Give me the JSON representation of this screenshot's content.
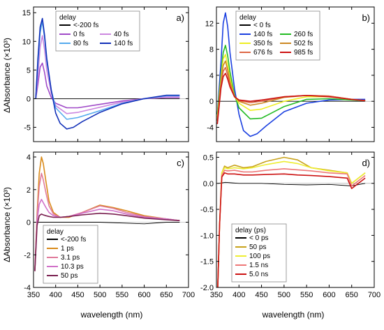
{
  "figure": {
    "shared_ylabel": "ΔAbsorbance (×10³)",
    "shared_xlabel": "wavelength (nm)"
  },
  "chart_data": [
    {
      "panel": "a)",
      "type": "line",
      "xlim": [
        350,
        700
      ],
      "ylim": [
        -7.5,
        16
      ],
      "xticks": [
        350,
        400,
        450,
        500,
        550,
        600,
        650,
        700
      ],
      "yticks": [
        -5,
        0,
        5,
        10,
        15
      ],
      "legend": {
        "title": "delay",
        "placement": "top-left",
        "columns": 2
      },
      "series": [
        {
          "name": "<-200 fs",
          "color": "#000000",
          "x": [
            350,
            400,
            450,
            500,
            550,
            600,
            650,
            680
          ],
          "y": [
            0,
            0,
            0,
            0,
            0,
            0,
            0,
            0
          ]
        },
        {
          "name": "0 fs",
          "color": "#a04ac8",
          "x": [
            355,
            360,
            365,
            370,
            375,
            380,
            390,
            400,
            425,
            450,
            500,
            550,
            600,
            650,
            680
          ],
          "y": [
            0,
            2.5,
            5.5,
            6.2,
            4.5,
            2.2,
            0.2,
            -0.8,
            -1.6,
            -1.6,
            -1.0,
            -0.4,
            0,
            0.2,
            0.2
          ]
        },
        {
          "name": "40 fs",
          "color": "#cc88e0",
          "x": [
            355,
            360,
            365,
            370,
            375,
            380,
            390,
            400,
            425,
            450,
            500,
            550,
            600,
            650,
            680
          ],
          "y": [
            0,
            4,
            9,
            11,
            8.5,
            5,
            1,
            -1.2,
            -2.6,
            -2.4,
            -1.5,
            -0.6,
            0,
            0.3,
            0.3
          ]
        },
        {
          "name": "80 fs",
          "color": "#55aaee",
          "x": [
            355,
            360,
            365,
            370,
            375,
            380,
            390,
            400,
            425,
            450,
            500,
            550,
            600,
            650,
            680
          ],
          "y": [
            0,
            6,
            11.5,
            13.5,
            10.5,
            6.5,
            1.5,
            -1.6,
            -3.6,
            -3.3,
            -2.1,
            -0.8,
            0,
            0.5,
            0.5
          ]
        },
        {
          "name": "140 fs",
          "color": "#1230b8",
          "x": [
            355,
            360,
            365,
            370,
            375,
            380,
            390,
            400,
            410,
            425,
            440,
            460,
            500,
            550,
            600,
            650,
            680
          ],
          "y": [
            0,
            7,
            12.5,
            14,
            11,
            7,
            1.5,
            -2.5,
            -4.3,
            -5.3,
            -5.0,
            -4.0,
            -2.4,
            -0.9,
            0,
            0.6,
            0.6
          ]
        }
      ]
    },
    {
      "panel": "b)",
      "type": "line",
      "xlim": [
        350,
        700
      ],
      "ylim": [
        -6.2,
        14.5
      ],
      "xticks": [
        350,
        400,
        450,
        500,
        550,
        600,
        650,
        700
      ],
      "yticks": [
        -4,
        0,
        4,
        8,
        12
      ],
      "legend": {
        "title": "delay",
        "placement": "top-left",
        "columns": 2
      },
      "series": [
        {
          "name": "< 0 fs",
          "color": "#000000",
          "x": [
            350,
            400,
            450,
            500,
            550,
            600,
            650,
            680
          ],
          "y": [
            0,
            0,
            0,
            0,
            0,
            0,
            0,
            0
          ]
        },
        {
          "name": "140 fs",
          "color": "#1a3fe0",
          "x": [
            352,
            360,
            365,
            370,
            375,
            380,
            390,
            400,
            410,
            425,
            440,
            460,
            500,
            550,
            600,
            650,
            680
          ],
          "y": [
            -2,
            6,
            12,
            13.6,
            11.5,
            7.5,
            2,
            -2,
            -4.5,
            -5.4,
            -5.0,
            -3.8,
            -1.6,
            -0.3,
            0.2,
            0.3,
            0.3
          ]
        },
        {
          "name": "260 fs",
          "color": "#22bb22",
          "x": [
            352,
            360,
            365,
            370,
            375,
            380,
            390,
            400,
            425,
            450,
            500,
            550,
            600,
            650,
            680
          ],
          "y": [
            -2,
            4,
            7.5,
            8.6,
            7,
            4.5,
            1,
            -1,
            -2.7,
            -2.6,
            -0.8,
            0.3,
            0.4,
            0.2,
            0.1
          ]
        },
        {
          "name": "350 fs",
          "color": "#eeee22",
          "x": [
            352,
            360,
            365,
            370,
            375,
            380,
            390,
            400,
            425,
            450,
            500,
            550,
            600,
            650,
            680
          ],
          "y": [
            -2.5,
            3.5,
            6.5,
            7.2,
            5.5,
            3.5,
            0.8,
            -0.3,
            -1.4,
            -1.2,
            0,
            0.7,
            0.7,
            0.3,
            0.1
          ]
        },
        {
          "name": "502 fs",
          "color": "#cc8822",
          "x": [
            352,
            360,
            365,
            370,
            375,
            380,
            390,
            400,
            425,
            450,
            500,
            550,
            600,
            650,
            680
          ],
          "y": [
            -3,
            3,
            5.5,
            6.2,
            4.8,
            3,
            0.8,
            0,
            -0.6,
            -0.3,
            0.6,
            0.9,
            0.8,
            0.3,
            0.1
          ]
        },
        {
          "name": "676 fs",
          "color": "#dd6644",
          "x": [
            352,
            360,
            365,
            370,
            375,
            380,
            390,
            400,
            425,
            450,
            500,
            550,
            600,
            650,
            680
          ],
          "y": [
            -3,
            2.5,
            4.6,
            5.2,
            4,
            2.5,
            0.7,
            0.1,
            -0.2,
            0,
            0.7,
            0.9,
            0.8,
            0.3,
            0.1
          ]
        },
        {
          "name": "985 fs",
          "color": "#cc1111",
          "x": [
            352,
            360,
            365,
            370,
            375,
            380,
            390,
            400,
            425,
            450,
            500,
            550,
            600,
            650,
            680
          ],
          "y": [
            -3.5,
            2,
            3.8,
            4.3,
            3.4,
            2.2,
            0.7,
            0.2,
            0,
            0.2,
            0.7,
            0.9,
            0.7,
            0.3,
            0.1
          ]
        }
      ]
    },
    {
      "panel": "c)",
      "type": "line",
      "xlim": [
        350,
        700
      ],
      "ylim": [
        -4,
        4.3
      ],
      "xticks": [
        350,
        400,
        450,
        500,
        550,
        600,
        650,
        700
      ],
      "yticks": [
        -4,
        -2,
        0,
        2,
        4
      ],
      "legend": {
        "title": "delay",
        "placement": "bottom-left",
        "columns": 1
      },
      "series": [
        {
          "name": "<-200 fs",
          "color": "#000000",
          "x": [
            350,
            400,
            450,
            500,
            550,
            600,
            650,
            680
          ],
          "y": [
            0,
            0,
            0,
            0,
            -0.05,
            -0.1,
            0,
            0
          ]
        },
        {
          "name": "1 ps",
          "color": "#d98a1a",
          "x": [
            353,
            358,
            363,
            368,
            372,
            378,
            385,
            395,
            410,
            430,
            460,
            500,
            530,
            560,
            600,
            650,
            680
          ],
          "y": [
            -3,
            0.5,
            3,
            4,
            3.6,
            2.5,
            1.3,
            0.6,
            0.3,
            0.3,
            0.6,
            1.05,
            0.9,
            0.7,
            0.4,
            0.2,
            0.1
          ]
        },
        {
          "name": "3.1 ps",
          "color": "#e07a9a",
          "x": [
            353,
            358,
            363,
            368,
            372,
            378,
            385,
            395,
            410,
            430,
            460,
            500,
            530,
            560,
            600,
            650,
            680
          ],
          "y": [
            -3,
            0.3,
            2.2,
            3,
            2.6,
            1.8,
            1,
            0.5,
            0.3,
            0.35,
            0.6,
            1,
            0.85,
            0.6,
            0.35,
            0.2,
            0.1
          ]
        },
        {
          "name": "10.3 ps",
          "color": "#d070c8",
          "x": [
            353,
            358,
            363,
            368,
            372,
            378,
            385,
            395,
            410,
            430,
            460,
            500,
            530,
            560,
            600,
            650,
            680
          ],
          "y": [
            -3,
            0.1,
            1.1,
            1.4,
            1.2,
            0.9,
            0.6,
            0.4,
            0.3,
            0.35,
            0.55,
            0.8,
            0.7,
            0.5,
            0.3,
            0.2,
            0.1
          ]
        },
        {
          "name": "50 ps",
          "color": "#7a2050",
          "x": [
            353,
            358,
            363,
            368,
            372,
            378,
            385,
            395,
            410,
            430,
            460,
            500,
            530,
            560,
            600,
            650,
            680
          ],
          "y": [
            -3,
            -0.2,
            0.4,
            0.5,
            0.45,
            0.4,
            0.35,
            0.3,
            0.3,
            0.35,
            0.45,
            0.55,
            0.5,
            0.4,
            0.25,
            0.15,
            0.1
          ]
        }
      ]
    },
    {
      "panel": "d)",
      "type": "line",
      "xlim": [
        350,
        700
      ],
      "ylim": [
        -2,
        0.6
      ],
      "xticks": [
        350,
        400,
        450,
        500,
        550,
        600,
        650,
        700
      ],
      "yticks": [
        -2.0,
        -1.5,
        -1.0,
        -0.5,
        0.0,
        0.5
      ],
      "legend": {
        "title": "delay (ps)",
        "placement": "bottom-left",
        "columns": 1
      },
      "series": [
        {
          "name": "< 0 ps",
          "color": "#000000",
          "x": [
            355,
            370,
            400,
            450,
            500,
            550,
            600,
            650,
            680
          ],
          "y": [
            0,
            0.02,
            0,
            0,
            -0.02,
            -0.03,
            -0.02,
            -0.05,
            0
          ]
        },
        {
          "name": "50 ps",
          "color": "#c8a21a",
          "x": [
            353,
            357,
            362,
            368,
            375,
            390,
            410,
            430,
            460,
            500,
            530,
            560,
            600,
            640,
            650,
            680
          ],
          "y": [
            -2,
            -0.8,
            0.2,
            0.33,
            0.3,
            0.35,
            0.3,
            0.32,
            0.42,
            0.5,
            0.45,
            0.3,
            0.25,
            0.2,
            0,
            0.2
          ]
        },
        {
          "name": "100 ps",
          "color": "#eeee33",
          "x": [
            353,
            357,
            362,
            368,
            375,
            390,
            410,
            430,
            460,
            500,
            530,
            560,
            600,
            640,
            650,
            680
          ],
          "y": [
            -2,
            -0.8,
            0.2,
            0.3,
            0.28,
            0.3,
            0.28,
            0.3,
            0.36,
            0.42,
            0.38,
            0.3,
            0.24,
            0.2,
            0,
            0.2
          ]
        },
        {
          "name": "1.5 ns",
          "color": "#ee7777",
          "x": [
            353,
            357,
            362,
            368,
            375,
            390,
            410,
            430,
            460,
            500,
            530,
            560,
            600,
            640,
            650,
            680
          ],
          "y": [
            -2,
            -0.8,
            0.15,
            0.25,
            0.24,
            0.25,
            0.22,
            0.22,
            0.25,
            0.28,
            0.26,
            0.24,
            0.2,
            0.18,
            -0.05,
            0.15
          ]
        },
        {
          "name": "5.0 ns",
          "color": "#cc1111",
          "x": [
            353,
            357,
            362,
            368,
            375,
            390,
            410,
            430,
            460,
            500,
            530,
            560,
            600,
            640,
            650,
            680
          ],
          "y": [
            -2,
            -0.8,
            0.12,
            0.2,
            0.18,
            0.18,
            0.16,
            0.16,
            0.17,
            0.18,
            0.16,
            0.15,
            0.13,
            0.1,
            -0.1,
            0.1
          ]
        }
      ]
    }
  ]
}
